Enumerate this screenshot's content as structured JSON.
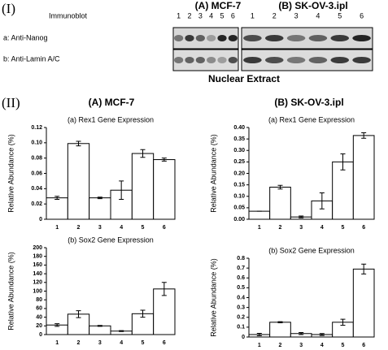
{
  "section_labels": [
    "(I)",
    "(II)"
  ],
  "blot": {
    "columns": [
      "(A) MCF-7",
      "(B) SK-OV-3.ipl"
    ],
    "immunoblot_label": "Immunoblot",
    "lanes": [
      "1",
      "2",
      "3",
      "4",
      "5",
      "6"
    ],
    "rows": [
      "a: Anti-Nanog",
      "b: Anti-Lamin A/C"
    ],
    "footer": "Nuclear Extract"
  },
  "chart_headers": [
    "(A) MCF-7",
    "(B) SK-OV-3.ipl"
  ],
  "chart_data": [
    {
      "type": "bar",
      "title": "(a) Rex1 Gene Expression",
      "y_label": "Relative Abundance (%)",
      "categories": [
        "1",
        "2",
        "3",
        "4",
        "5",
        "6"
      ],
      "values": [
        0.028,
        0.099,
        0.028,
        0.038,
        0.086,
        0.078
      ],
      "errors": [
        0.002,
        0.003,
        0.001,
        0.012,
        0.005,
        0.002
      ],
      "color": "#ffffff",
      "ylim": [
        0,
        0.12
      ],
      "yticks": [
        0,
        0.02,
        0.04,
        0.06,
        0.08,
        {
          "value": 0.1,
          "label": "0.10"
        },
        0.12
      ]
    },
    {
      "type": "bar",
      "title": "(a) Rex1 Gene Expression",
      "y_label": "Relative Abundance (%)",
      "categories": [
        "1",
        "2",
        "3",
        "4",
        "5",
        "6"
      ],
      "values": [
        0.035,
        0.14,
        0.01,
        0.08,
        0.25,
        0.365
      ],
      "errors": [
        0,
        0.008,
        0.004,
        0.035,
        0.035,
        0.012
      ],
      "color": "#ffffff",
      "ylim": [
        0,
        0.4
      ],
      "yticks": [
        {
          "value": 0,
          "label": "0.00"
        },
        0.05,
        {
          "value": 0.1,
          "label": "0.10"
        },
        0.15,
        {
          "value": 0.2,
          "label": "0.20"
        },
        0.25,
        {
          "value": 0.3,
          "label": "0.30"
        },
        0.35,
        {
          "value": 0.4,
          "label": "0.40"
        }
      ]
    },
    {
      "type": "bar",
      "title": "(b) Sox2 Gene Expression",
      "y_label": "Relative Abundance (%)",
      "categories": [
        "1",
        "2",
        "3",
        "4",
        "5",
        "6"
      ],
      "values": [
        22,
        47,
        20,
        8,
        48,
        105
      ],
      "errors": [
        3,
        8,
        1,
        1,
        8,
        15
      ],
      "color": "#ffffff",
      "ylim": [
        0,
        200
      ],
      "yticks": [
        0,
        20,
        40,
        60,
        80,
        100,
        120,
        140,
        160,
        180,
        200
      ]
    },
    {
      "type": "bar",
      "title": "(b) Sox2 Gene Expression",
      "y_label": "Relative Abundance (%)",
      "categories": [
        "1",
        "2",
        "3",
        "4",
        "5",
        "6"
      ],
      "values": [
        0.025,
        0.15,
        0.035,
        0.025,
        0.15,
        0.69
      ],
      "errors": [
        0.012,
        0.006,
        0.01,
        0.01,
        0.03,
        0.05
      ],
      "color": "#ffffff",
      "ylim": [
        0,
        0.8
      ],
      "yticks": [
        0,
        0.1,
        0.2,
        0.3,
        0.4,
        0.5,
        0.6,
        0.7,
        0.8
      ]
    }
  ]
}
